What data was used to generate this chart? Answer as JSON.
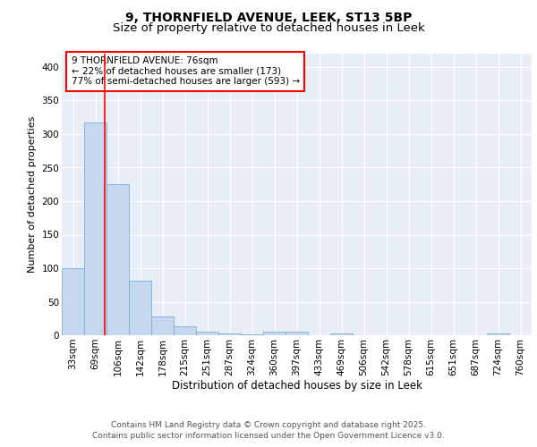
{
  "title1": "9, THORNFIELD AVENUE, LEEK, ST13 5BP",
  "title2": "Size of property relative to detached houses in Leek",
  "xlabel": "Distribution of detached houses by size in Leek",
  "ylabel": "Number of detached properties",
  "bins": [
    "33sqm",
    "69sqm",
    "106sqm",
    "142sqm",
    "178sqm",
    "215sqm",
    "251sqm",
    "287sqm",
    "324sqm",
    "360sqm",
    "397sqm",
    "433sqm",
    "469sqm",
    "506sqm",
    "542sqm",
    "578sqm",
    "615sqm",
    "651sqm",
    "687sqm",
    "724sqm",
    "760sqm"
  ],
  "values": [
    100,
    317,
    225,
    82,
    28,
    13,
    5,
    3,
    2,
    6,
    6,
    0,
    3,
    0,
    0,
    0,
    0,
    0,
    0,
    3,
    0
  ],
  "bar_color": "#c5d8f0",
  "bar_edge_color": "#7aadd4",
  "red_line_x": 1.43,
  "annotation_text": "9 THORNFIELD AVENUE: 76sqm\n← 22% of detached houses are smaller (173)\n77% of semi-detached houses are larger (593) →",
  "annotation_fontsize": 7.5,
  "title1_fontsize": 10,
  "title2_fontsize": 9.5,
  "ylabel_fontsize": 8,
  "xlabel_fontsize": 8.5,
  "tick_fontsize": 7.5,
  "footer_text": "Contains HM Land Registry data © Crown copyright and database right 2025.\nContains public sector information licensed under the Open Government Licence v3.0.",
  "footer_fontsize": 6.5,
  "ylim": [
    0,
    420
  ],
  "background_color": "#e8eef8",
  "grid_color": "white",
  "fig_background": "white"
}
